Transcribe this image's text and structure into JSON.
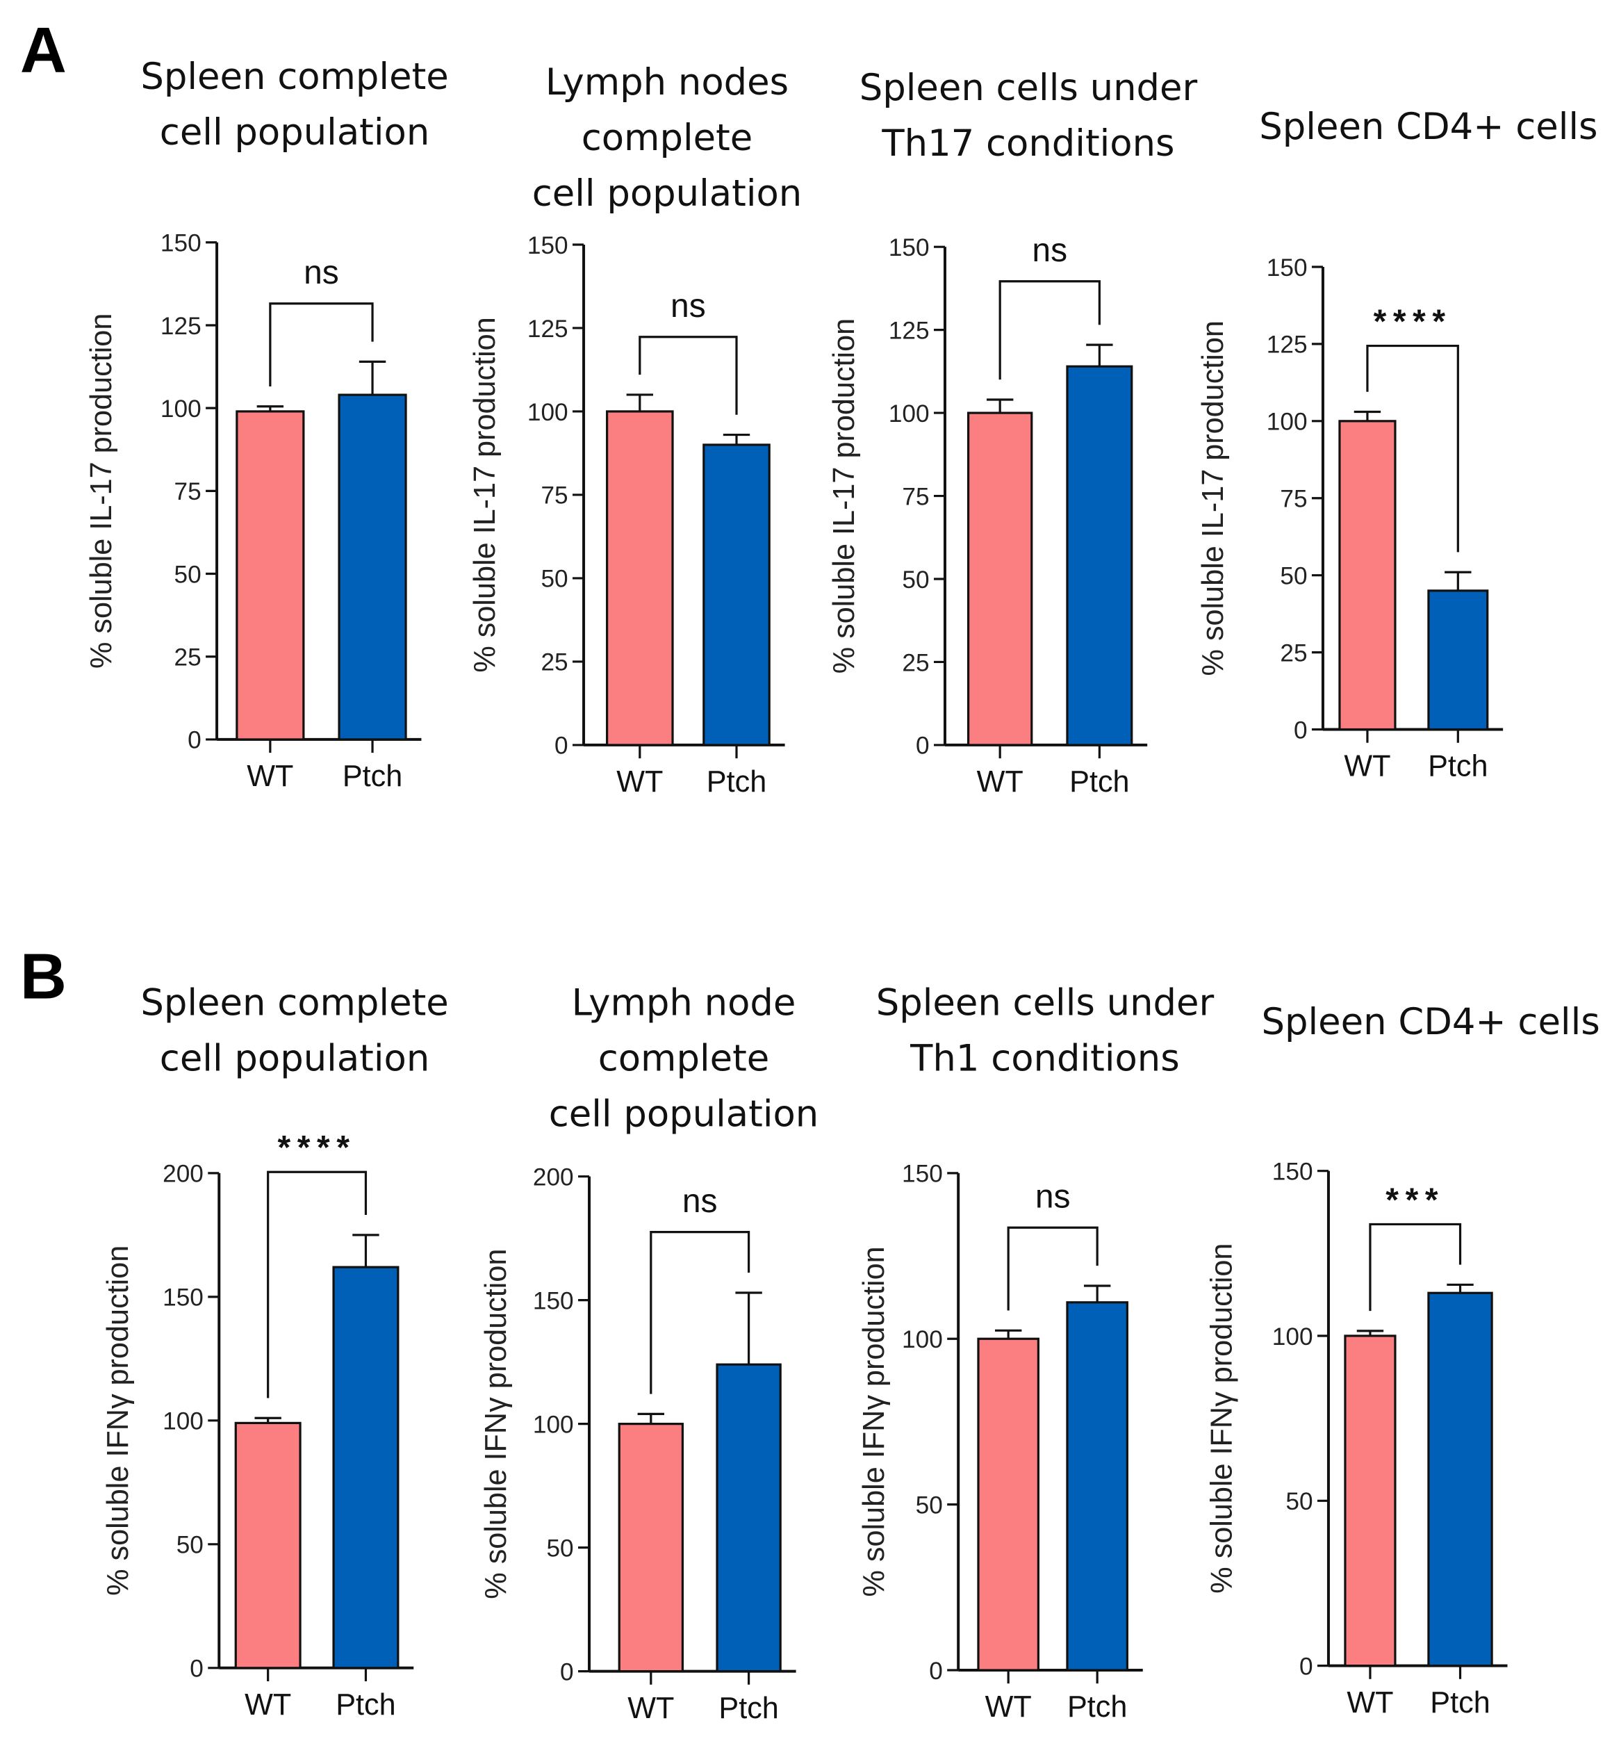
{
  "colors": {
    "WT": "#fb7f80",
    "Ptch": "#0060b8",
    "axis": "#111111"
  },
  "chart_data": [
    {
      "panel": "A",
      "type": "bar",
      "title": [
        "Spleen complete",
        "cell population"
      ],
      "ylabel": "% soluble IL-17 production",
      "categories": [
        "WT",
        "Ptch"
      ],
      "values": [
        99,
        104
      ],
      "errors": [
        1.5,
        10
      ],
      "ylim": [
        0,
        150
      ],
      "yticks": [
        0,
        25,
        50,
        75,
        100,
        125,
        150
      ],
      "significance": "ns"
    },
    {
      "type": "bar",
      "title": [
        "Lymph nodes",
        "complete",
        "cell population"
      ],
      "ylabel": "% soluble IL-17 production",
      "categories": [
        "WT",
        "Ptch"
      ],
      "values": [
        100,
        90
      ],
      "errors": [
        5,
        3
      ],
      "ylim": [
        0,
        150
      ],
      "yticks": [
        0,
        25,
        50,
        75,
        100,
        125,
        150
      ],
      "significance": "ns"
    },
    {
      "type": "bar",
      "title": [
        "Spleen cells under",
        "Th17 conditions"
      ],
      "ylabel": "% soluble IL-17 production",
      "categories": [
        "WT",
        "Ptch"
      ],
      "values": [
        100,
        114
      ],
      "errors": [
        4,
        6.5
      ],
      "ylim": [
        0,
        150
      ],
      "yticks": [
        0,
        25,
        50,
        75,
        100,
        125,
        150
      ],
      "significance": "ns"
    },
    {
      "type": "bar",
      "title": [
        "Spleen CD4+ cells"
      ],
      "ylabel": "% soluble IL-17 production",
      "categories": [
        "WT",
        "Ptch"
      ],
      "values": [
        100,
        45
      ],
      "errors": [
        3,
        6
      ],
      "ylim": [
        0,
        150
      ],
      "yticks": [
        0,
        25,
        50,
        75,
        100,
        125,
        150
      ],
      "significance": "****"
    },
    {
      "panel": "B",
      "type": "bar",
      "title": [
        "Spleen complete",
        "cell population"
      ],
      "ylabel": "% soluble IFNγ production",
      "categories": [
        "WT",
        "Ptch"
      ],
      "values": [
        99,
        162
      ],
      "errors": [
        2,
        13
      ],
      "ylim": [
        0,
        200
      ],
      "yticks": [
        0,
        50,
        100,
        150,
        200
      ],
      "significance": "****"
    },
    {
      "type": "bar",
      "title": [
        "Lymph node",
        "complete",
        "cell population"
      ],
      "ylabel": "% soluble IFNγ production",
      "categories": [
        "WT",
        "Ptch"
      ],
      "values": [
        100,
        124
      ],
      "errors": [
        4,
        29
      ],
      "ylim": [
        0,
        200
      ],
      "yticks": [
        0,
        50,
        100,
        150,
        200
      ],
      "significance": "ns"
    },
    {
      "type": "bar",
      "title": [
        "Spleen cells under",
        "Th1 conditions"
      ],
      "ylabel": "% soluble IFNγ production",
      "categories": [
        "WT",
        "Ptch"
      ],
      "values": [
        100,
        111
      ],
      "errors": [
        2.5,
        5
      ],
      "ylim": [
        0,
        150
      ],
      "yticks": [
        0,
        50,
        100,
        150
      ],
      "significance": "ns"
    },
    {
      "type": "bar",
      "title": [
        "Spleen CD4+ cells"
      ],
      "ylabel": "% soluble IFNγ production",
      "categories": [
        "WT",
        "Ptch"
      ],
      "values": [
        100,
        113
      ],
      "errors": [
        1.5,
        2.5
      ],
      "ylim": [
        0,
        150
      ],
      "yticks": [
        0,
        50,
        100,
        150
      ],
      "significance": "***"
    }
  ]
}
